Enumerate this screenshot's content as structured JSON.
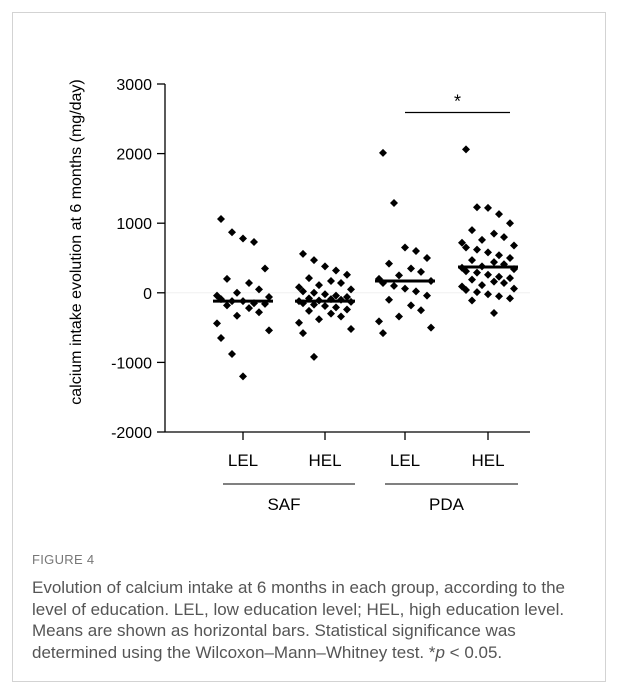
{
  "chart_data": {
    "type": "scatter",
    "ylabel": "calcium intake evolution at 6 months (mg/day)",
    "ylim": [
      -2000,
      3000
    ],
    "yticks": [
      3000,
      2000,
      1000,
      0,
      -1000,
      -2000
    ],
    "ytick_labels": [
      "3000",
      "2000",
      "1000",
      "0",
      "-1000",
      "-2000"
    ],
    "groups": [
      {
        "label": "LEL",
        "parent": "SAF",
        "mean": -120,
        "values": [
          1060,
          870,
          780,
          730,
          350,
          200,
          140,
          50,
          0,
          -40,
          -60,
          -90,
          -120,
          -120,
          -150,
          -160,
          -180,
          -220,
          -280,
          -330,
          -440,
          -540,
          -650,
          -880,
          -1200
        ]
      },
      {
        "label": "HEL",
        "parent": "SAF",
        "mean": -120,
        "values": [
          560,
          470,
          380,
          320,
          260,
          210,
          170,
          140,
          110,
          80,
          50,
          20,
          0,
          -20,
          -40,
          -60,
          -80,
          -90,
          -100,
          -110,
          -120,
          -130,
          -150,
          -170,
          -190,
          -210,
          -240,
          -260,
          -300,
          -340,
          -380,
          -430,
          -520,
          -580,
          -920
        ]
      },
      {
        "label": "LEL",
        "parent": "PDA",
        "mean": 170,
        "values": [
          2010,
          1290,
          650,
          600,
          500,
          420,
          350,
          300,
          250,
          200,
          170,
          140,
          100,
          60,
          20,
          -40,
          -100,
          -180,
          -250,
          -340,
          -410,
          -500,
          -580
        ]
      },
      {
        "label": "HEL",
        "parent": "PDA",
        "mean": 370,
        "values": [
          2060,
          1230,
          1220,
          1130,
          1000,
          900,
          850,
          800,
          760,
          720,
          680,
          650,
          620,
          580,
          540,
          500,
          470,
          440,
          410,
          380,
          360,
          340,
          310,
          290,
          260,
          230,
          210,
          190,
          160,
          140,
          110,
          90,
          60,
          40,
          10,
          -20,
          -50,
          -80,
          -110,
          -290
        ]
      }
    ],
    "parents": [
      "SAF",
      "PDA"
    ],
    "significance": {
      "label": "*",
      "between": [
        "PDA LEL",
        "PDA HEL"
      ]
    }
  },
  "figure": {
    "label": "FIGURE 4",
    "caption_part1": "Evolution of calcium intake at 6 months in each group, according to the level of education. LEL, low education level; HEL, high education level. Means are shown as horizontal bars. Statistical significance was determined using the Wilcoxon–Mann–Whitney test. *",
    "caption_p": "p",
    "caption_part2": " < 0.05."
  }
}
